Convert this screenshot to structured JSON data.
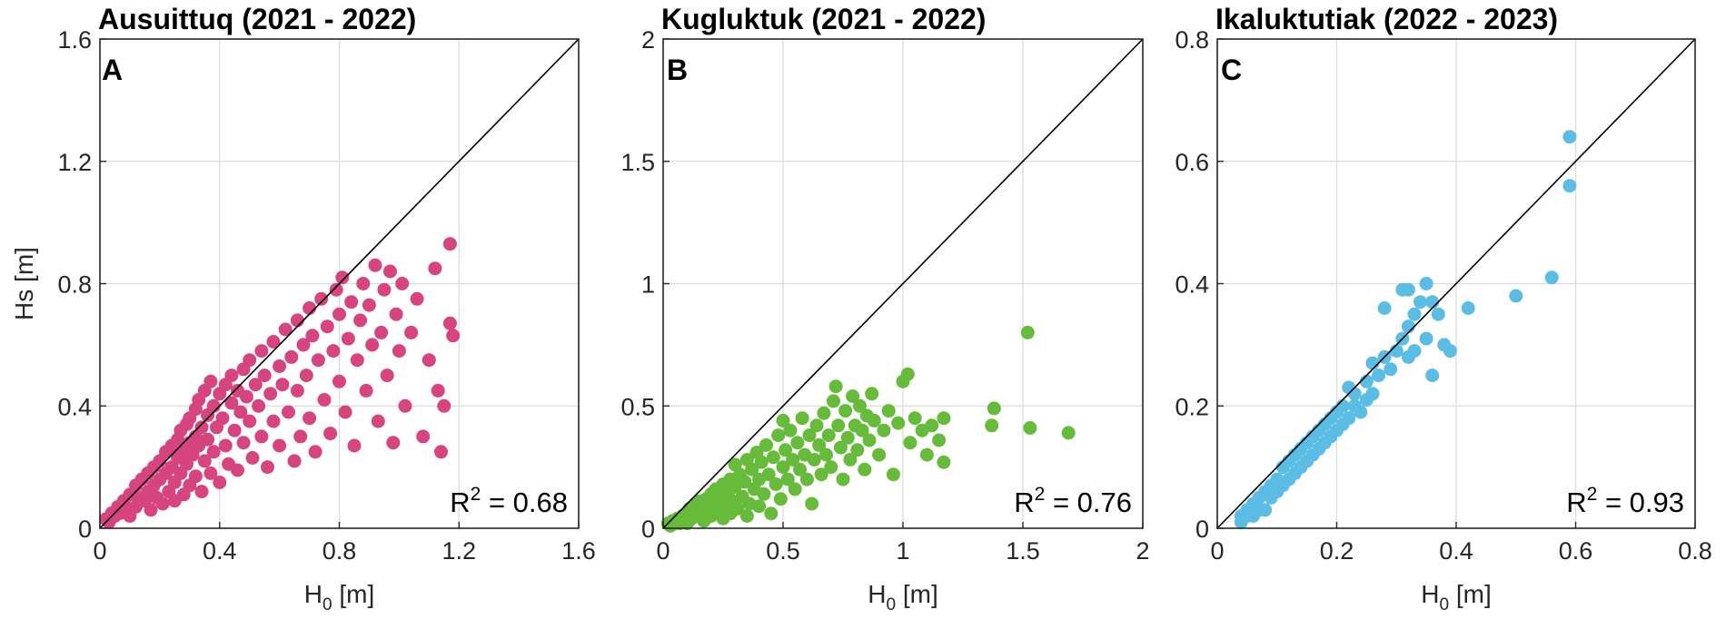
{
  "chart_data": [
    {
      "type": "scatter",
      "panel": "A",
      "title": "Ausuittuq (2021 - 2022)",
      "xlabel": "H",
      "xlabel_sub": "0",
      "xlabel_unit": "[m]",
      "ylabel": "Hs [m]",
      "xlim": [
        0,
        1.6
      ],
      "ylim": [
        0,
        1.6
      ],
      "xticks": [
        0,
        0.4,
        0.8,
        1.2,
        1.6
      ],
      "yticks": [
        0,
        0.4,
        0.8,
        1.2,
        1.6
      ],
      "xtick_labels": [
        "0",
        "0.4",
        "0.8",
        "1.2",
        "1.6"
      ],
      "ytick_labels": [
        "0",
        "0.4",
        "0.8",
        "1.2",
        "1.6"
      ],
      "grid": true,
      "reference_line": "1:1",
      "color": "#D6457F",
      "r2_label": "R",
      "r2_sup": "2",
      "r2_value": " = 0.68",
      "points": [
        [
          0.02,
          0.03
        ],
        [
          0.03,
          0.02
        ],
        [
          0.04,
          0.05
        ],
        [
          0.05,
          0.04
        ],
        [
          0.06,
          0.07
        ],
        [
          0.07,
          0.05
        ],
        [
          0.08,
          0.09
        ],
        [
          0.09,
          0.06
        ],
        [
          0.1,
          0.11
        ],
        [
          0.1,
          0.04
        ],
        [
          0.12,
          0.14
        ],
        [
          0.12,
          0.07
        ],
        [
          0.13,
          0.1
        ],
        [
          0.14,
          0.16
        ],
        [
          0.15,
          0.09
        ],
        [
          0.16,
          0.18
        ],
        [
          0.16,
          0.12
        ],
        [
          0.17,
          0.06
        ],
        [
          0.18,
          0.2
        ],
        [
          0.18,
          0.14
        ],
        [
          0.19,
          0.1
        ],
        [
          0.2,
          0.22
        ],
        [
          0.2,
          0.16
        ],
        [
          0.21,
          0.08
        ],
        [
          0.22,
          0.25
        ],
        [
          0.22,
          0.18
        ],
        [
          0.23,
          0.12
        ],
        [
          0.24,
          0.27
        ],
        [
          0.24,
          0.2
        ],
        [
          0.25,
          0.09
        ],
        [
          0.25,
          0.15
        ],
        [
          0.26,
          0.29
        ],
        [
          0.26,
          0.23
        ],
        [
          0.27,
          0.32
        ],
        [
          0.27,
          0.18
        ],
        [
          0.28,
          0.25
        ],
        [
          0.28,
          0.11
        ],
        [
          0.29,
          0.34
        ],
        [
          0.29,
          0.21
        ],
        [
          0.3,
          0.28
        ],
        [
          0.3,
          0.36
        ],
        [
          0.3,
          0.14
        ],
        [
          0.31,
          0.24
        ],
        [
          0.32,
          0.39
        ],
        [
          0.32,
          0.3
        ],
        [
          0.32,
          0.17
        ],
        [
          0.33,
          0.42
        ],
        [
          0.33,
          0.27
        ],
        [
          0.34,
          0.33
        ],
        [
          0.34,
          0.12
        ],
        [
          0.35,
          0.45
        ],
        [
          0.35,
          0.22
        ],
        [
          0.36,
          0.37
        ],
        [
          0.36,
          0.29
        ],
        [
          0.37,
          0.48
        ],
        [
          0.37,
          0.18
        ],
        [
          0.38,
          0.4
        ],
        [
          0.38,
          0.25
        ],
        [
          0.39,
          0.33
        ],
        [
          0.4,
          0.44
        ],
        [
          0.4,
          0.15
        ],
        [
          0.41,
          0.36
        ],
        [
          0.42,
          0.47
        ],
        [
          0.42,
          0.27
        ],
        [
          0.43,
          0.21
        ],
        [
          0.44,
          0.41
        ],
        [
          0.44,
          0.5
        ],
        [
          0.45,
          0.32
        ],
        [
          0.46,
          0.45
        ],
        [
          0.46,
          0.19
        ],
        [
          0.47,
          0.38
        ],
        [
          0.48,
          0.52
        ],
        [
          0.48,
          0.28
        ],
        [
          0.49,
          0.43
        ],
        [
          0.5,
          0.35
        ],
        [
          0.5,
          0.55
        ],
        [
          0.51,
          0.23
        ],
        [
          0.52,
          0.47
        ],
        [
          0.53,
          0.4
        ],
        [
          0.54,
          0.58
        ],
        [
          0.54,
          0.3
        ],
        [
          0.55,
          0.5
        ],
        [
          0.56,
          0.2
        ],
        [
          0.57,
          0.44
        ],
        [
          0.58,
          0.61
        ],
        [
          0.58,
          0.35
        ],
        [
          0.6,
          0.53
        ],
        [
          0.6,
          0.27
        ],
        [
          0.61,
          0.47
        ],
        [
          0.62,
          0.65
        ],
        [
          0.63,
          0.38
        ],
        [
          0.64,
          0.56
        ],
        [
          0.65,
          0.22
        ],
        [
          0.66,
          0.68
        ],
        [
          0.66,
          0.45
        ],
        [
          0.67,
          0.3
        ],
        [
          0.68,
          0.6
        ],
        [
          0.69,
          0.5
        ],
        [
          0.7,
          0.72
        ],
        [
          0.7,
          0.36
        ],
        [
          0.71,
          0.63
        ],
        [
          0.72,
          0.25
        ],
        [
          0.73,
          0.55
        ],
        [
          0.74,
          0.75
        ],
        [
          0.75,
          0.42
        ],
        [
          0.76,
          0.66
        ],
        [
          0.77,
          0.31
        ],
        [
          0.78,
          0.58
        ],
        [
          0.79,
          0.78
        ],
        [
          0.8,
          0.48
        ],
        [
          0.8,
          0.7
        ],
        [
          0.81,
          0.82
        ],
        [
          0.82,
          0.38
        ],
        [
          0.83,
          0.62
        ],
        [
          0.84,
          0.74
        ],
        [
          0.85,
          0.27
        ],
        [
          0.86,
          0.55
        ],
        [
          0.87,
          0.68
        ],
        [
          0.88,
          0.8
        ],
        [
          0.89,
          0.45
        ],
        [
          0.9,
          0.73
        ],
        [
          0.91,
          0.6
        ],
        [
          0.92,
          0.86
        ],
        [
          0.93,
          0.35
        ],
        [
          0.94,
          0.64
        ],
        [
          0.95,
          0.78
        ],
        [
          0.96,
          0.5
        ],
        [
          0.97,
          0.84
        ],
        [
          0.98,
          0.28
        ],
        [
          0.99,
          0.7
        ],
        [
          1.0,
          0.58
        ],
        [
          1.01,
          0.8
        ],
        [
          1.02,
          0.4
        ],
        [
          1.04,
          0.64
        ],
        [
          1.06,
          0.75
        ],
        [
          1.08,
          0.3
        ],
        [
          1.1,
          0.55
        ],
        [
          1.12,
          0.85
        ],
        [
          1.13,
          0.45
        ],
        [
          1.14,
          0.25
        ],
        [
          1.15,
          0.4
        ],
        [
          1.17,
          0.67
        ],
        [
          1.17,
          0.93
        ],
        [
          1.18,
          0.63
        ]
      ]
    },
    {
      "type": "scatter",
      "panel": "B",
      "title": "Kugluktuk (2021 - 2022)",
      "xlabel": "H",
      "xlabel_sub": "0",
      "xlabel_unit": "[m]",
      "ylabel": "",
      "xlim": [
        0,
        2
      ],
      "ylim": [
        0,
        2
      ],
      "xticks": [
        0,
        0.5,
        1,
        1.5,
        2
      ],
      "yticks": [
        0,
        0.5,
        1,
        1.5,
        2
      ],
      "xtick_labels": [
        "0",
        "0.5",
        "1",
        "1.5",
        "2"
      ],
      "ytick_labels": [
        "0",
        "0.5",
        "1",
        "1.5",
        "2"
      ],
      "grid": true,
      "reference_line": "1:1",
      "color": "#66BB3A",
      "r2_label": "R",
      "r2_sup": "2",
      "r2_value": " = 0.76",
      "points": [
        [
          0.02,
          0.02
        ],
        [
          0.03,
          0.01
        ],
        [
          0.04,
          0.03
        ],
        [
          0.05,
          0.02
        ],
        [
          0.06,
          0.04
        ],
        [
          0.07,
          0.02
        ],
        [
          0.08,
          0.05
        ],
        [
          0.09,
          0.03
        ],
        [
          0.1,
          0.06
        ],
        [
          0.1,
          0.02
        ],
        [
          0.11,
          0.08
        ],
        [
          0.12,
          0.04
        ],
        [
          0.13,
          0.09
        ],
        [
          0.14,
          0.05
        ],
        [
          0.15,
          0.11
        ],
        [
          0.16,
          0.07
        ],
        [
          0.17,
          0.03
        ],
        [
          0.18,
          0.12
        ],
        [
          0.19,
          0.08
        ],
        [
          0.2,
          0.14
        ],
        [
          0.2,
          0.05
        ],
        [
          0.21,
          0.1
        ],
        [
          0.22,
          0.16
        ],
        [
          0.23,
          0.07
        ],
        [
          0.24,
          0.12
        ],
        [
          0.25,
          0.18
        ],
        [
          0.25,
          0.04
        ],
        [
          0.26,
          0.09
        ],
        [
          0.27,
          0.14
        ],
        [
          0.28,
          0.2
        ],
        [
          0.28,
          0.06
        ],
        [
          0.29,
          0.11
        ],
        [
          0.3,
          0.17
        ],
        [
          0.3,
          0.26
        ],
        [
          0.31,
          0.08
        ],
        [
          0.32,
          0.22
        ],
        [
          0.33,
          0.13
        ],
        [
          0.34,
          0.19
        ],
        [
          0.35,
          0.28
        ],
        [
          0.35,
          0.05
        ],
        [
          0.36,
          0.1
        ],
        [
          0.37,
          0.24
        ],
        [
          0.38,
          0.16
        ],
        [
          0.39,
          0.31
        ],
        [
          0.4,
          0.2
        ],
        [
          0.4,
          0.09
        ],
        [
          0.41,
          0.27
        ],
        [
          0.42,
          0.14
        ],
        [
          0.43,
          0.34
        ],
        [
          0.44,
          0.22
        ],
        [
          0.45,
          0.06
        ],
        [
          0.46,
          0.29
        ],
        [
          0.47,
          0.18
        ],
        [
          0.48,
          0.38
        ],
        [
          0.49,
          0.12
        ],
        [
          0.5,
          0.25
        ],
        [
          0.5,
          0.44
        ],
        [
          0.51,
          0.32
        ],
        [
          0.52,
          0.2
        ],
        [
          0.53,
          0.4
        ],
        [
          0.54,
          0.28
        ],
        [
          0.55,
          0.16
        ],
        [
          0.56,
          0.35
        ],
        [
          0.57,
          0.24
        ],
        [
          0.58,
          0.45
        ],
        [
          0.59,
          0.3
        ],
        [
          0.6,
          0.2
        ],
        [
          0.61,
          0.38
        ],
        [
          0.62,
          0.1
        ],
        [
          0.63,
          0.28
        ],
        [
          0.64,
          0.42
        ],
        [
          0.65,
          0.34
        ],
        [
          0.66,
          0.22
        ],
        [
          0.67,
          0.47
        ],
        [
          0.68,
          0.3
        ],
        [
          0.69,
          0.38
        ],
        [
          0.7,
          0.25
        ],
        [
          0.71,
          0.52
        ],
        [
          0.72,
          0.58
        ],
        [
          0.73,
          0.42
        ],
        [
          0.74,
          0.33
        ],
        [
          0.75,
          0.2
        ],
        [
          0.76,
          0.48
        ],
        [
          0.77,
          0.37
        ],
        [
          0.78,
          0.28
        ],
        [
          0.79,
          0.54
        ],
        [
          0.8,
          0.42
        ],
        [
          0.81,
          0.32
        ],
        [
          0.82,
          0.5
        ],
        [
          0.83,
          0.4
        ],
        [
          0.84,
          0.24
        ],
        [
          0.85,
          0.46
        ],
        [
          0.86,
          0.36
        ],
        [
          0.87,
          0.55
        ],
        [
          0.88,
          0.44
        ],
        [
          0.9,
          0.3
        ],
        [
          0.92,
          0.4
        ],
        [
          0.94,
          0.48
        ],
        [
          0.96,
          0.22
        ],
        [
          0.98,
          0.43
        ],
        [
          1.0,
          0.6
        ],
        [
          1.02,
          0.63
        ],
        [
          1.03,
          0.35
        ],
        [
          1.05,
          0.45
        ],
        [
          1.08,
          0.4
        ],
        [
          1.1,
          0.3
        ],
        [
          1.12,
          0.42
        ],
        [
          1.15,
          0.36
        ],
        [
          1.17,
          0.27
        ],
        [
          1.17,
          0.45
        ],
        [
          1.37,
          0.42
        ],
        [
          1.38,
          0.49
        ],
        [
          1.52,
          0.8
        ],
        [
          1.53,
          0.41
        ],
        [
          1.69,
          0.39
        ]
      ]
    },
    {
      "type": "scatter",
      "panel": "C",
      "title": "Ikaluktutiak (2022 - 2023)",
      "xlabel": "H",
      "xlabel_sub": "0",
      "xlabel_unit": "[m]",
      "ylabel": "",
      "xlim": [
        0,
        0.8
      ],
      "ylim": [
        0,
        0.8
      ],
      "xticks": [
        0,
        0.2,
        0.4,
        0.6,
        0.8
      ],
      "yticks": [
        0,
        0.2,
        0.4,
        0.6,
        0.8
      ],
      "xtick_labels": [
        "0",
        "0.2",
        "0.4",
        "0.6",
        "0.8"
      ],
      "ytick_labels": [
        "0",
        "0.2",
        "0.4",
        "0.6",
        "0.8"
      ],
      "grid": true,
      "reference_line": "1:1",
      "color": "#5BBCE4",
      "r2_label": "R",
      "r2_sup": "2",
      "r2_value": " = 0.93",
      "points": [
        [
          0.04,
          0.01
        ],
        [
          0.04,
          0.02
        ],
        [
          0.05,
          0.02
        ],
        [
          0.05,
          0.03
        ],
        [
          0.06,
          0.02
        ],
        [
          0.06,
          0.04
        ],
        [
          0.07,
          0.03
        ],
        [
          0.07,
          0.05
        ],
        [
          0.08,
          0.03
        ],
        [
          0.08,
          0.06
        ],
        [
          0.09,
          0.05
        ],
        [
          0.09,
          0.07
        ],
        [
          0.1,
          0.06
        ],
        [
          0.1,
          0.08
        ],
        [
          0.11,
          0.07
        ],
        [
          0.11,
          0.1
        ],
        [
          0.12,
          0.08
        ],
        [
          0.12,
          0.11
        ],
        [
          0.13,
          0.09
        ],
        [
          0.13,
          0.12
        ],
        [
          0.14,
          0.1
        ],
        [
          0.14,
          0.13
        ],
        [
          0.15,
          0.11
        ],
        [
          0.15,
          0.14
        ],
        [
          0.16,
          0.12
        ],
        [
          0.16,
          0.15
        ],
        [
          0.17,
          0.13
        ],
        [
          0.17,
          0.16
        ],
        [
          0.18,
          0.14
        ],
        [
          0.18,
          0.17
        ],
        [
          0.19,
          0.15
        ],
        [
          0.19,
          0.18
        ],
        [
          0.2,
          0.16
        ],
        [
          0.2,
          0.19
        ],
        [
          0.21,
          0.17
        ],
        [
          0.21,
          0.2
        ],
        [
          0.22,
          0.18
        ],
        [
          0.22,
          0.23
        ],
        [
          0.23,
          0.2
        ],
        [
          0.23,
          0.22
        ],
        [
          0.24,
          0.19
        ],
        [
          0.25,
          0.21
        ],
        [
          0.25,
          0.24
        ],
        [
          0.26,
          0.27
        ],
        [
          0.26,
          0.22
        ],
        [
          0.27,
          0.25
        ],
        [
          0.28,
          0.28
        ],
        [
          0.28,
          0.36
        ],
        [
          0.29,
          0.26
        ],
        [
          0.3,
          0.29
        ],
        [
          0.31,
          0.31
        ],
        [
          0.31,
          0.39
        ],
        [
          0.32,
          0.28
        ],
        [
          0.32,
          0.33
        ],
        [
          0.32,
          0.39
        ],
        [
          0.33,
          0.35
        ],
        [
          0.33,
          0.29
        ],
        [
          0.34,
          0.37
        ],
        [
          0.35,
          0.31
        ],
        [
          0.35,
          0.4
        ],
        [
          0.36,
          0.25
        ],
        [
          0.36,
          0.37
        ],
        [
          0.37,
          0.35
        ],
        [
          0.38,
          0.3
        ],
        [
          0.39,
          0.29
        ],
        [
          0.42,
          0.36
        ],
        [
          0.5,
          0.38
        ],
        [
          0.56,
          0.41
        ],
        [
          0.59,
          0.56
        ],
        [
          0.59,
          0.64
        ]
      ]
    }
  ]
}
